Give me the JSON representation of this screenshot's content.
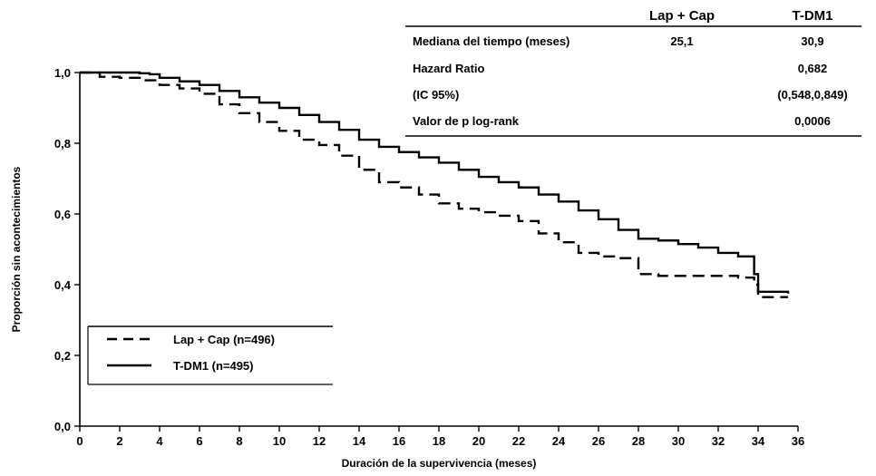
{
  "chart_data": {
    "type": "line",
    "title": "",
    "xlabel": "Duración de la supervivencia (meses)",
    "ylabel": "Proporción sin acontecimientos",
    "xlim": [
      0,
      36
    ],
    "ylim": [
      0,
      1
    ],
    "x_ticks": [
      "0",
      "2",
      "4",
      "6",
      "8",
      "10",
      "12",
      "14",
      "16",
      "18",
      "20",
      "22",
      "24",
      "26",
      "28",
      "30",
      "32",
      "34",
      "36"
    ],
    "y_ticks": [
      "0,0",
      "0,2",
      "0,4",
      "0,6",
      "0,8",
      "1,0"
    ],
    "grid": false,
    "legend_position": "bottom-left",
    "legend": [
      "Lap + Cap (n=496)",
      "T-DM1 (n=495)"
    ],
    "series": [
      {
        "name": "Lap + Cap (n=496)",
        "style": "dashed",
        "color": "#000000",
        "x": [
          0,
          1,
          2,
          3,
          4,
          5,
          6,
          7,
          8,
          9,
          10,
          11,
          12,
          13,
          14,
          15,
          16,
          17,
          18,
          19,
          20,
          21,
          22,
          23,
          24,
          25,
          26,
          27,
          28,
          29,
          30,
          31,
          32,
          33,
          33.5,
          33.8,
          34,
          35.5
        ],
        "y": [
          1.0,
          0.988,
          0.985,
          0.978,
          0.965,
          0.955,
          0.94,
          0.91,
          0.885,
          0.86,
          0.835,
          0.81,
          0.795,
          0.765,
          0.725,
          0.69,
          0.675,
          0.655,
          0.63,
          0.615,
          0.605,
          0.595,
          0.58,
          0.545,
          0.52,
          0.49,
          0.48,
          0.475,
          0.43,
          0.425,
          0.425,
          0.425,
          0.425,
          0.42,
          0.42,
          0.4,
          0.365,
          0.365
        ]
      },
      {
        "name": "T-DM1 (n=495)",
        "style": "solid",
        "color": "#000000",
        "x": [
          0,
          1,
          2,
          3,
          3.5,
          4,
          5,
          6,
          7,
          8,
          9,
          10,
          11,
          12,
          13,
          14,
          15,
          16,
          17,
          18,
          19,
          20,
          21,
          22,
          23,
          24,
          25,
          26,
          27,
          28,
          29,
          30,
          31,
          32,
          33,
          33.5,
          33.8,
          34,
          35.5
        ],
        "y": [
          1.0,
          1.0,
          1.0,
          0.998,
          0.995,
          0.985,
          0.975,
          0.965,
          0.948,
          0.93,
          0.915,
          0.9,
          0.88,
          0.86,
          0.838,
          0.81,
          0.79,
          0.775,
          0.76,
          0.745,
          0.725,
          0.705,
          0.69,
          0.675,
          0.655,
          0.635,
          0.61,
          0.585,
          0.555,
          0.53,
          0.525,
          0.515,
          0.505,
          0.49,
          0.48,
          0.48,
          0.43,
          0.38,
          0.375
        ]
      }
    ],
    "table": {
      "columns": [
        "",
        "Lap + Cap",
        "T-DM1"
      ],
      "rows": [
        [
          "Mediana del tiempo (meses)",
          "25,1",
          "30,9"
        ],
        [
          "Hazard Ratio",
          "",
          "0,682"
        ],
        [
          "(IC 95%)",
          "",
          "(0,548,0,849)"
        ],
        [
          "Valor de p log-rank",
          "",
          "0,0006"
        ]
      ]
    }
  }
}
